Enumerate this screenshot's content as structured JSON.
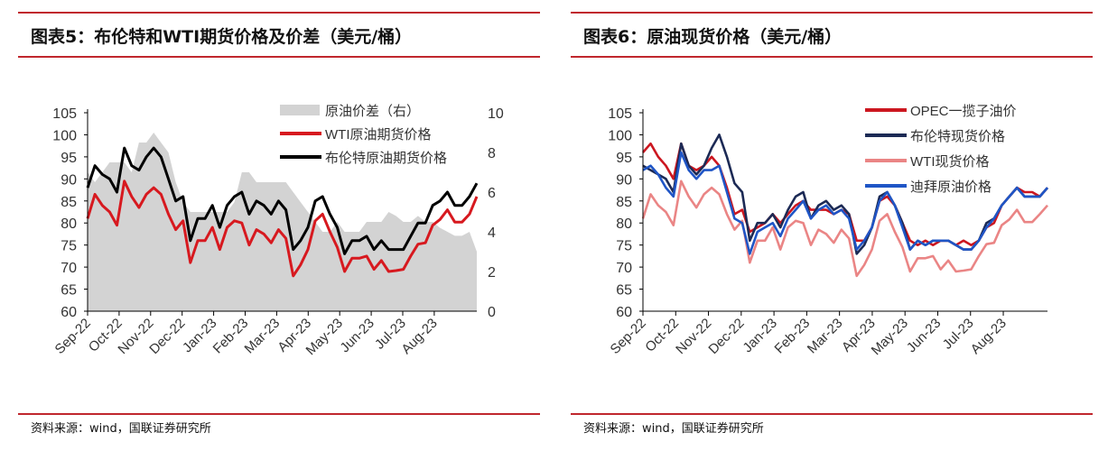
{
  "chart_data": [
    {
      "type": "line",
      "title": "图表5：布伦特和WTI期货价格及价差（美元/桶）",
      "source": "资料来源：wind，国联证券研究所",
      "x_ticks": [
        "Sep-22",
        "Oct-22",
        "Nov-22",
        "Dec-22",
        "Jan-23",
        "Feb-23",
        "Mar-23",
        "Apr-23",
        "May-23",
        "Jun-23",
        "Jul-23",
        "Aug-23"
      ],
      "ylim": [
        60,
        105
      ],
      "yticks": [
        60,
        65,
        70,
        75,
        80,
        85,
        90,
        95,
        100,
        105
      ],
      "y2lim": [
        0,
        10
      ],
      "y2ticks": [
        0,
        2,
        4,
        6,
        8,
        10
      ],
      "x_start": "2022-09-01",
      "x_step": "weekly",
      "series": [
        {
          "name": "原油价差（右）",
          "type": "area",
          "axis": "right",
          "color": "#d3d3d3",
          "values": [
            7,
            6.5,
            7,
            7.5,
            7.5,
            7.5,
            7,
            8.5,
            8.5,
            9,
            8.5,
            8,
            6.5,
            5.5,
            5,
            5,
            5,
            5,
            5,
            5,
            5.5,
            7,
            7,
            6.5,
            6.5,
            6.5,
            6.5,
            6.5,
            6,
            5.5,
            5,
            4.5,
            4,
            4,
            4.5,
            4,
            4,
            4,
            4.5,
            4.5,
            4.5,
            5,
            4.8,
            4.5,
            4.5,
            4.8,
            4.5,
            4.5,
            4.2,
            4,
            3.8,
            3.8,
            4,
            3
          ]
        },
        {
          "name": "WTI原油期货价格",
          "axis": "left",
          "color": "#d7191f",
          "values": [
            81,
            86.5,
            84,
            82.5,
            79.5,
            89.5,
            86,
            83.5,
            86.5,
            88,
            86.5,
            82,
            78.5,
            80.5,
            71,
            76,
            76,
            79,
            74,
            79,
            80.5,
            80,
            75,
            78.5,
            77.5,
            75.5,
            78.5,
            76.5,
            68,
            70.5,
            74,
            80.5,
            82,
            78,
            74.5,
            69,
            72,
            72,
            72.5,
            69.5,
            71.5,
            69,
            69.2,
            69.5,
            72.5,
            75.2,
            75.5,
            79.5,
            80.8,
            83,
            80.2,
            80.2,
            82,
            86
          ]
        },
        {
          "name": "布伦特原油期货价格",
          "axis": "left",
          "color": "#000000",
          "values": [
            88,
            93,
            91,
            90,
            87,
            97,
            93,
            92,
            95,
            97,
            95,
            90,
            85,
            86,
            76,
            81,
            81,
            84,
            79,
            84,
            86,
            87,
            82,
            85,
            84,
            82,
            85,
            83,
            74,
            76,
            79,
            85,
            86,
            82,
            79,
            73,
            76,
            76,
            77,
            74,
            76,
            74,
            74,
            74,
            77,
            80,
            80,
            84,
            85,
            87,
            84,
            84,
            86,
            89
          ]
        }
      ]
    },
    {
      "type": "line",
      "title": "图表6：原油现货价格（美元/桶）",
      "source": "资料来源：wind，国联证券研究所",
      "x_ticks": [
        "Sep-22",
        "Oct-22",
        "Nov-22",
        "Dec-22",
        "Jan-23",
        "Feb-23",
        "Mar-23",
        "Apr-23",
        "May-23",
        "Jun-23",
        "Jul-23",
        "Aug-23"
      ],
      "ylim": [
        60,
        105
      ],
      "yticks": [
        60,
        65,
        70,
        75,
        80,
        85,
        90,
        95,
        100,
        105
      ],
      "x_start": "2022-09-01",
      "x_step": "weekly",
      "series": [
        {
          "name": "OPEC一揽子油价",
          "color": "#cc1720",
          "values": [
            96,
            98,
            95,
            93,
            90,
            98,
            93,
            92,
            93,
            95,
            93,
            88,
            82,
            83,
            78,
            79,
            80,
            82,
            80,
            82,
            84,
            85,
            83,
            83,
            83,
            82,
            83,
            82,
            76,
            76,
            79,
            85,
            86,
            84,
            80,
            76,
            75,
            76,
            75,
            76,
            76,
            75,
            76,
            75,
            76,
            79,
            80,
            84,
            86,
            88,
            87,
            87,
            86,
            88
          ]
        },
        {
          "name": "布伦特现货价格",
          "color": "#1c2a55",
          "values": [
            93,
            92,
            91,
            90,
            87,
            98,
            93,
            91,
            93,
            97,
            100,
            95,
            89,
            87,
            76,
            80,
            80,
            82,
            79,
            83,
            86,
            87,
            81,
            84,
            85,
            83,
            84,
            82,
            73,
            75,
            79,
            86,
            87,
            84,
            80,
            74,
            76,
            75,
            76,
            76,
            76,
            75,
            74,
            74,
            76,
            80,
            81,
            84,
            86,
            88,
            86,
            86,
            86,
            88
          ]
        },
        {
          "name": "WTI现货价格",
          "color": "#ea8585",
          "values": [
            81,
            86.5,
            84,
            82.5,
            79.5,
            89.5,
            86,
            83.5,
            86.5,
            88,
            86.5,
            82,
            78.5,
            80.5,
            71,
            76,
            76,
            79,
            74,
            79,
            80.5,
            80,
            75,
            78.5,
            77.5,
            75.5,
            78.5,
            76.5,
            68,
            70.5,
            74,
            80.5,
            82,
            78,
            74.5,
            69,
            72,
            72,
            72.5,
            69.5,
            71.5,
            69,
            69.2,
            69.5,
            72.5,
            75.2,
            75.5,
            79.5,
            80.8,
            83,
            80.2,
            80.2,
            82,
            84
          ]
        },
        {
          "name": "迪拜原油价格",
          "color": "#1f55c6",
          "values": [
            92,
            93,
            91,
            88,
            86,
            96,
            92,
            90,
            92,
            92,
            93,
            87,
            81,
            80,
            73,
            78,
            79,
            80,
            77,
            81,
            83,
            85,
            81,
            83,
            84,
            82,
            83,
            81,
            74,
            76,
            79,
            85,
            87,
            84,
            79,
            74,
            76,
            75,
            76,
            76,
            76,
            75,
            74,
            74,
            76,
            79,
            81,
            84,
            86,
            88,
            86,
            86,
            86,
            88
          ]
        }
      ]
    }
  ]
}
